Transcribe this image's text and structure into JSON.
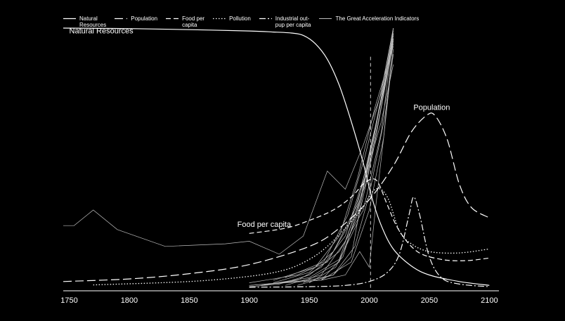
{
  "chart_data": {
    "type": "line",
    "title": "",
    "xlabel": "",
    "ylabel": "",
    "xlim": [
      1745,
      2108
    ],
    "ylim": [
      0,
      100
    ],
    "x_ticks": [
      1750,
      1800,
      1850,
      1900,
      1950,
      2000,
      2050,
      2100
    ],
    "grid": false,
    "legend_position": "top",
    "annotations": [
      {
        "text": "Natural Resources",
        "x": 1750,
        "y": 98
      },
      {
        "text": "Population",
        "x": 2052,
        "y": 68.5
      },
      {
        "text": "Food per capita",
        "x": 1890,
        "y": 23.5
      }
    ],
    "reference_line": {
      "x": 2001,
      "style": "dashed"
    },
    "series": [
      {
        "name": "Natural\nResources",
        "style": "solid",
        "color": "#ffffff",
        "points": [
          [
            1745,
            100
          ],
          [
            1800,
            99.8
          ],
          [
            1850,
            99.4
          ],
          [
            1900,
            98.9
          ],
          [
            1920,
            98.5
          ],
          [
            1935,
            98.1
          ],
          [
            1945,
            97.2
          ],
          [
            1955,
            94
          ],
          [
            1965,
            88
          ],
          [
            1975,
            78
          ],
          [
            1985,
            64
          ],
          [
            1995,
            48
          ],
          [
            2002,
            35
          ],
          [
            2010,
            24
          ],
          [
            2020,
            15
          ],
          [
            2035,
            8.5
          ],
          [
            2050,
            5
          ],
          [
            2075,
            2.5
          ],
          [
            2100,
            1
          ]
        ]
      },
      {
        "name": "Population",
        "style": "long-dash",
        "color": "#ffffff",
        "points": [
          [
            1745,
            2.5
          ],
          [
            1800,
            3.5
          ],
          [
            1850,
            5.5
          ],
          [
            1900,
            9
          ],
          [
            1950,
            16
          ],
          [
            1975,
            23
          ],
          [
            2000,
            34
          ],
          [
            2020,
            47
          ],
          [
            2035,
            60
          ],
          [
            2048,
            66.5
          ],
          [
            2055,
            66.2
          ],
          [
            2065,
            57
          ],
          [
            2075,
            40
          ],
          [
            2085,
            31
          ],
          [
            2100,
            27
          ]
        ]
      },
      {
        "name": "Food per\ncapita",
        "style": "dash",
        "color": "#ffffff",
        "points": [
          [
            1900,
            21
          ],
          [
            1930,
            23
          ],
          [
            1950,
            26
          ],
          [
            1970,
            30
          ],
          [
            1985,
            35
          ],
          [
            1995,
            40
          ],
          [
            2003,
            42
          ],
          [
            2008,
            40
          ],
          [
            2015,
            32
          ],
          [
            2025,
            22
          ],
          [
            2040,
            14
          ],
          [
            2060,
            11
          ],
          [
            2080,
            10.5
          ],
          [
            2100,
            11.5
          ]
        ]
      },
      {
        "name": "Pollution",
        "style": "dotted",
        "color": "#ffffff",
        "points": [
          [
            1770,
            1.2
          ],
          [
            1850,
            2.5
          ],
          [
            1900,
            4.5
          ],
          [
            1930,
            7
          ],
          [
            1950,
            11
          ],
          [
            1965,
            16
          ],
          [
            1980,
            23
          ],
          [
            1993,
            30
          ],
          [
            2005,
            38
          ],
          [
            2015,
            35
          ],
          [
            2025,
            22
          ],
          [
            2035,
            17
          ],
          [
            2050,
            14
          ],
          [
            2075,
            13.5
          ],
          [
            2100,
            15
          ]
        ]
      },
      {
        "name": "Industrial out-\npup per capita",
        "style": "dash-dot",
        "color": "#ffffff",
        "points": [
          [
            1900,
            0.3
          ],
          [
            1950,
            0.5
          ],
          [
            1980,
            1
          ],
          [
            2000,
            2.5
          ],
          [
            2015,
            6
          ],
          [
            2025,
            13
          ],
          [
            2033,
            28
          ],
          [
            2037,
            35
          ],
          [
            2042,
            28
          ],
          [
            2050,
            12
          ],
          [
            2060,
            4
          ],
          [
            2075,
            1.5
          ],
          [
            2100,
            0.5
          ]
        ]
      },
      {
        "name": "The Great Acceleration Indicators",
        "style": "thin-solid",
        "color": "#bdbdbd",
        "subseries": [
          [
            [
              1745,
              24
            ],
            [
              1754,
              24
            ],
            [
              1770,
              30
            ],
            [
              1790,
              22.5
            ],
            [
              1830,
              16
            ],
            [
              1880,
              17
            ],
            [
              1900,
              18
            ],
            [
              1925,
              13
            ],
            [
              1945,
              20
            ],
            [
              1965,
              45
            ],
            [
              1980,
              38
            ],
            [
              1995,
              55
            ],
            [
              2010,
              75
            ],
            [
              2020,
              100
            ]
          ],
          [
            [
              1900,
              0.5
            ],
            [
              1925,
              1.5
            ],
            [
              1950,
              5
            ],
            [
              1975,
              14
            ],
            [
              1995,
              30
            ],
            [
              2010,
              60
            ],
            [
              2020,
              98
            ]
          ],
          [
            [
              1910,
              1
            ],
            [
              1940,
              3
            ],
            [
              1960,
              8
            ],
            [
              1980,
              20
            ],
            [
              1995,
              42
            ],
            [
              2010,
              72
            ],
            [
              2020,
              95
            ]
          ],
          [
            [
              1920,
              2
            ],
            [
              1950,
              6
            ],
            [
              1970,
              14
            ],
            [
              1990,
              32
            ],
            [
              2005,
              62
            ],
            [
              2020,
              97
            ]
          ],
          [
            [
              1900,
              2
            ],
            [
              1940,
              5
            ],
            [
              1965,
              10
            ],
            [
              1985,
              26
            ],
            [
              2000,
              48
            ],
            [
              2012,
              78
            ],
            [
              2020,
              99
            ]
          ],
          [
            [
              1910,
              1
            ],
            [
              1950,
              4
            ],
            [
              1975,
              11
            ],
            [
              1993,
              35
            ],
            [
              2008,
              68
            ],
            [
              2020,
              94
            ]
          ],
          [
            [
              1930,
              1
            ],
            [
              1960,
              5
            ],
            [
              1980,
              18
            ],
            [
              1997,
              40
            ],
            [
              2010,
              70
            ],
            [
              2020,
              96
            ]
          ],
          [
            [
              1900,
              1
            ],
            [
              1960,
              3
            ],
            [
              1985,
              10
            ],
            [
              2000,
              30
            ],
            [
              2012,
              58
            ],
            [
              2020,
              92
            ]
          ],
          [
            [
              1950,
              2
            ],
            [
              1972,
              8
            ],
            [
              1990,
              25
            ],
            [
              2003,
              52
            ],
            [
              2015,
              82
            ],
            [
              2020,
              100
            ]
          ],
          [
            [
              1920,
              3
            ],
            [
              1955,
              8
            ],
            [
              1975,
              20
            ],
            [
              1990,
              42
            ],
            [
              2005,
              70
            ],
            [
              2020,
              93
            ]
          ],
          [
            [
              1940,
              1
            ],
            [
              1970,
              5
            ],
            [
              1988,
              16
            ],
            [
              2000,
              36
            ],
            [
              2013,
              66
            ],
            [
              2020,
              90
            ]
          ],
          [
            [
              1945,
              2
            ],
            [
              1975,
              10
            ],
            [
              1990,
              28
            ],
            [
              2002,
              56
            ],
            [
              2014,
              80
            ],
            [
              2020,
              98
            ]
          ],
          [
            [
              1960,
              3
            ],
            [
              1978,
              12
            ],
            [
              1990,
              30
            ],
            [
              2000,
              48
            ],
            [
              2010,
              64
            ],
            [
              2020,
              86
            ]
          ],
          [
            [
              1930,
              4
            ],
            [
              1962,
              10
            ],
            [
              1982,
              28
            ],
            [
              1996,
              50
            ],
            [
              2010,
              76
            ],
            [
              2020,
              100
            ]
          ],
          [
            [
              1960,
              3
            ],
            [
              1980,
              5
            ],
            [
              1992,
              14
            ],
            [
              2000,
              8
            ],
            [
              2005,
              30
            ],
            [
              2012,
              58
            ],
            [
              2020,
              96
            ]
          ],
          [
            [
              1900,
              1
            ],
            [
              1950,
              3
            ],
            [
              1970,
              5
            ],
            [
              1985,
              12
            ],
            [
              1995,
              38
            ],
            [
              2005,
              62
            ],
            [
              2020,
              96
            ]
          ]
        ]
      }
    ]
  }
}
